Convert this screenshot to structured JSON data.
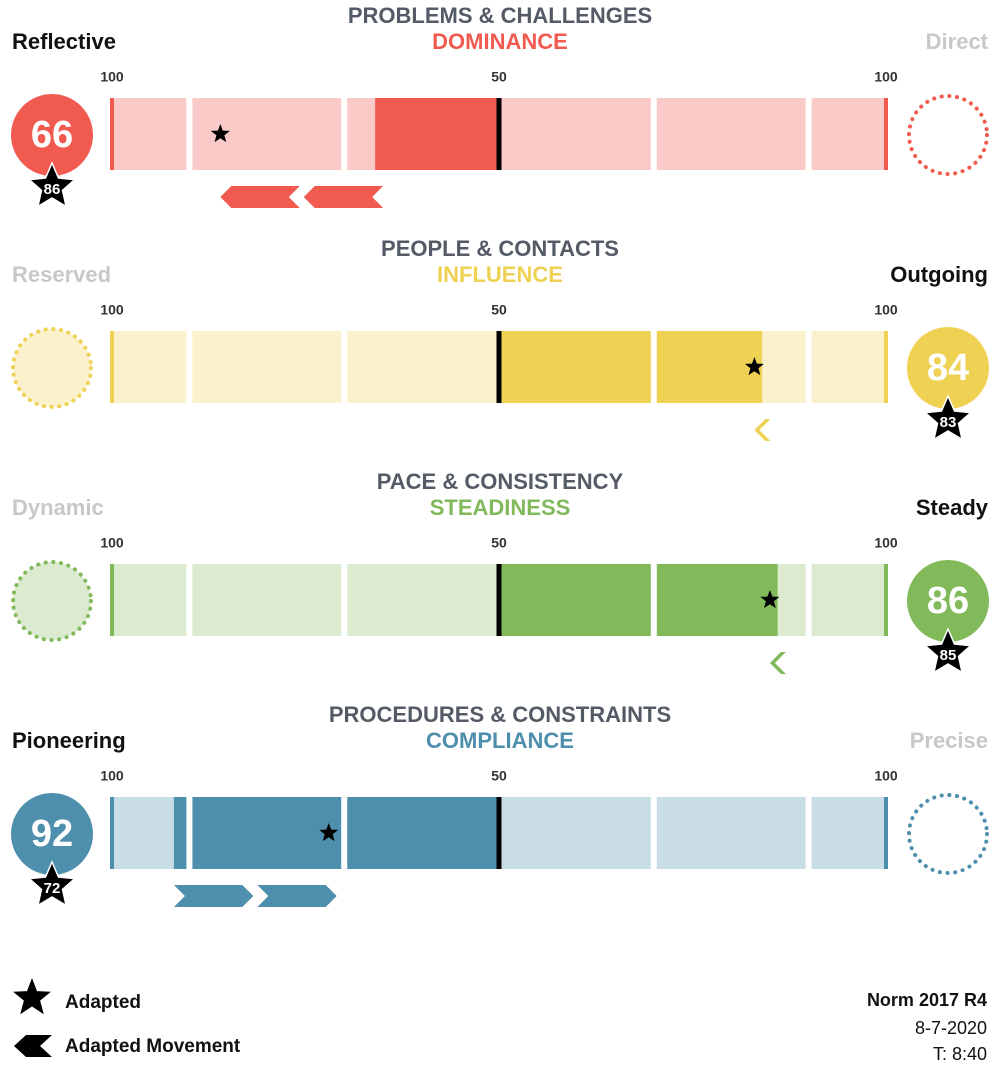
{
  "scales": [
    {
      "heading": "PROBLEMS & CHALLENGES",
      "dimension": "DOMINANCE",
      "left_label": "Reflective",
      "right_label": "Direct",
      "ticks": {
        "left": 100,
        "center": 50,
        "right": 100
      },
      "side": "left",
      "score": 66,
      "adapted": 86,
      "color": "#f05a4f",
      "light_color": "#f9cac8"
    },
    {
      "heading": "PEOPLE & CONTACTS",
      "dimension": "INFLUENCE",
      "left_label": "Reserved",
      "right_label": "Outgoing",
      "ticks": {
        "left": 100,
        "center": 50,
        "right": 100
      },
      "side": "right",
      "score": 84,
      "adapted": 83,
      "color": "#efd153",
      "light_color": "#fbf1cc"
    },
    {
      "heading": "PACE & CONSISTENCY",
      "dimension": "STEADINESS",
      "left_label": "Dynamic",
      "right_label": "Steady",
      "ticks": {
        "left": 100,
        "center": 50,
        "right": 100
      },
      "side": "right",
      "score": 86,
      "adapted": 85,
      "color": "#82b95a",
      "light_color": "#dcebd0"
    },
    {
      "heading": "PROCEDURES & CONSTRAINTS",
      "dimension": "COMPLIANCE",
      "left_label": "Pioneering",
      "right_label": "Precise",
      "ticks": {
        "left": 100,
        "center": 50,
        "right": 100
      },
      "side": "left",
      "score": 92,
      "adapted": 72,
      "color": "#4f8fae",
      "light_color": "#c9dde6"
    }
  ],
  "legend": {
    "adapted": "Adapted",
    "movement": "Adapted Movement"
  },
  "footer": {
    "norm": "Norm 2017 R4",
    "date": "8-7-2020",
    "time": "T: 8:40"
  }
}
